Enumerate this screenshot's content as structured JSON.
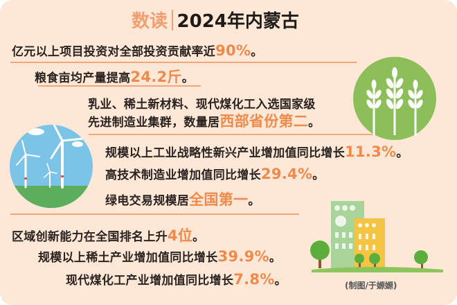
{
  "title": {
    "prefix": "数读",
    "main": "2024年内蒙古"
  },
  "items": [
    {
      "text": "亿元以上项目投资对全部投资贡献率近",
      "highlight": "90%",
      "end": "。"
    },
    {
      "text": "粮食亩均产量提高",
      "highlight": "24.2斤",
      "end": "。"
    },
    {
      "text": "乳业、稀土新材料、现代煤化工入选国家级",
      "highlight": "",
      "end": ""
    },
    {
      "text": "先进制造业集群，数量居",
      "highlight": "西部省份第二",
      "end": "。"
    },
    {
      "text": "规模以上工业战略性新兴产业增加值同比增长",
      "highlight": "11.3%",
      "end": "。"
    },
    {
      "text": "高技术制造业增加值同比增长",
      "highlight": "29.4%",
      "end": "。"
    },
    {
      "text": "绿电交易规模居",
      "highlight": "全国第一",
      "end": "。"
    },
    {
      "text": "区域创新能力在全国排名上升",
      "highlight": "4位",
      "end": "。"
    },
    {
      "text": "规模以上稀土产业增加值同比增长",
      "highlight": "39.9%",
      "end": "。"
    },
    {
      "text": "现代煤化工产业增加值同比增长",
      "highlight": "7.8%",
      "end": "。"
    }
  ],
  "credit": "(制图/于嫄嫄)",
  "colors": {
    "background": "#fde8d8",
    "accent": "#f08a4b",
    "text": "#2a2320",
    "wheat_green": "#8cbf5a",
    "sky": "#7cc3e8"
  },
  "icons": [
    "wheat-icon",
    "wind-turbine-icon",
    "buildings-trees-icon"
  ]
}
